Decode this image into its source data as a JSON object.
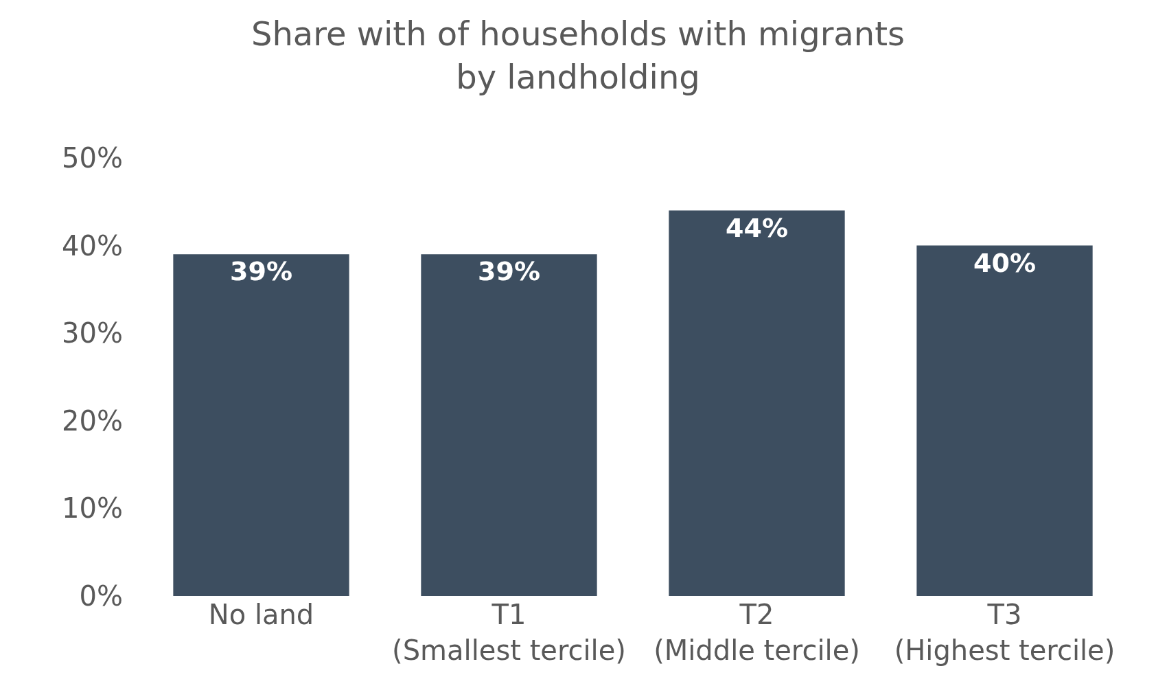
{
  "chart_data": {
    "type": "bar",
    "title": "Share with of households with migrants\nby landholding",
    "categories": [
      "No land",
      "T1\n(Smallest tercile)",
      "T2\n(Middle tercile)",
      "T3\n(Highest tercile)"
    ],
    "values": [
      39,
      39,
      44,
      40
    ],
    "value_labels": [
      "39%",
      "39%",
      "44%",
      "40%"
    ],
    "color": "#3d4e60",
    "ylim": [
      0,
      50
    ],
    "yticks": [
      {
        "value": 0,
        "label": "0%"
      },
      {
        "value": 10,
        "label": "10%"
      },
      {
        "value": 20,
        "label": "20%"
      },
      {
        "value": 30,
        "label": "30%"
      },
      {
        "value": 40,
        "label": "40%"
      },
      {
        "value": 50,
        "label": "50%"
      }
    ],
    "legend": false
  }
}
